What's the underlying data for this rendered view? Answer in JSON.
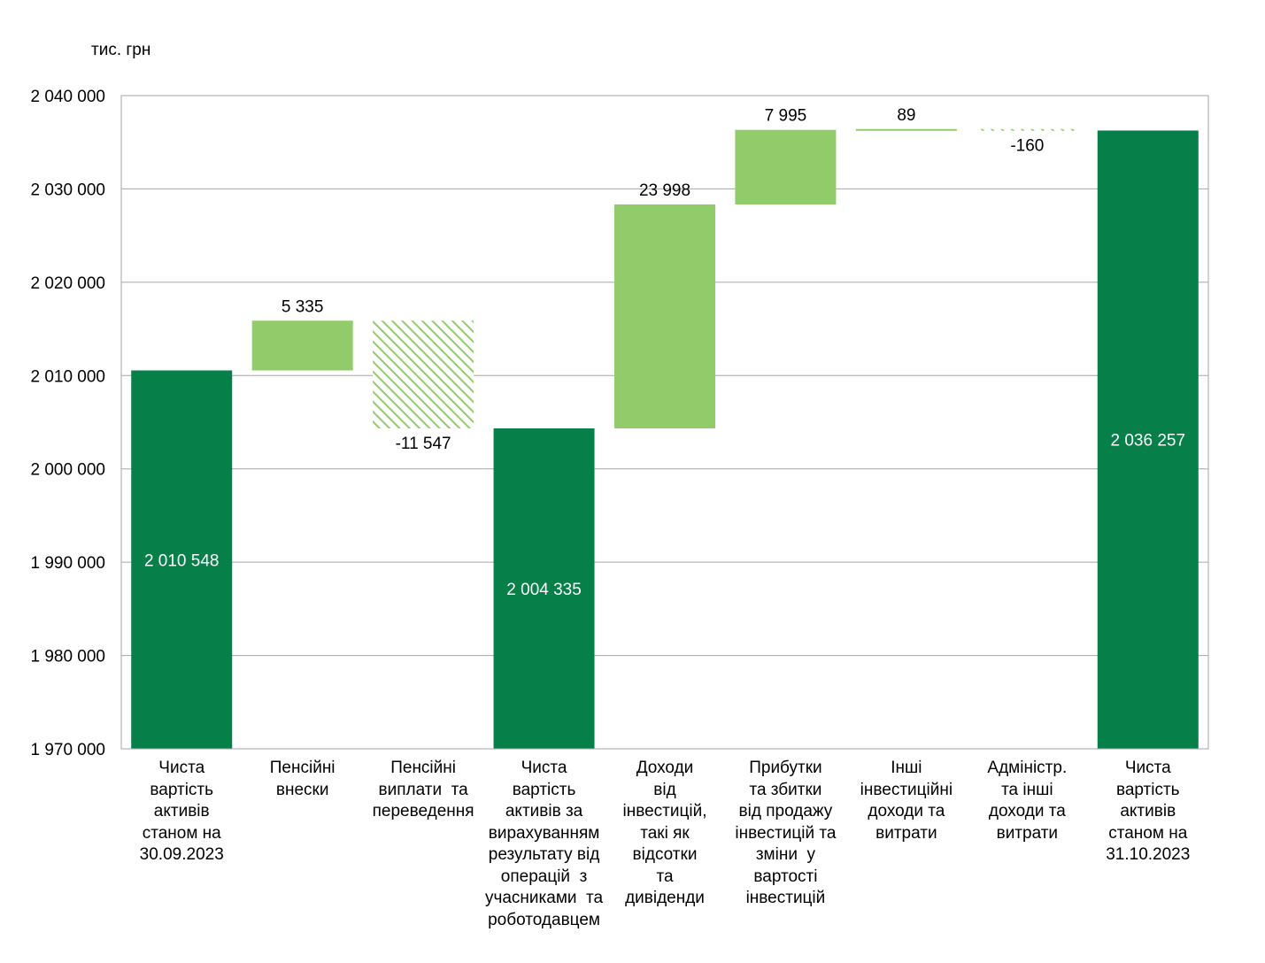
{
  "chart_data": {
    "type": "waterfall",
    "unit_label": "тис. грн",
    "ylim": [
      1970000,
      2040000
    ],
    "yticks": [
      1970000,
      1980000,
      1990000,
      2000000,
      2010000,
      2020000,
      2030000,
      2040000
    ],
    "ytick_labels": [
      "1 970 000",
      "1 980 000",
      "1 990 000",
      "2 000 000",
      "2 010 000",
      "2 020 000",
      "2 030 000",
      "2 040 000"
    ],
    "grid": true,
    "legend": "none",
    "colors": {
      "total": "#077f49",
      "increase": "#92cc6a",
      "decrease_hatch": "#92cc6a",
      "grid": "#a6a6a6"
    },
    "bars": [
      {
        "category": "Чиста вартість активів станом на 30.09.2023",
        "kind": "total",
        "value": 2010548,
        "label": "2 010 548"
      },
      {
        "category": "Пенсійні внески",
        "kind": "increase",
        "value": 5335,
        "label": "5 335"
      },
      {
        "category": "Пенсійні виплати та переведення",
        "kind": "decrease",
        "value": -11547,
        "label": "-11 547"
      },
      {
        "category": "Чиста вартість активів за вирахуванням результату від операцій з учасниками та роботодавцем",
        "kind": "total",
        "value": 2004335,
        "label": "2 004 335"
      },
      {
        "category": "Доходи від інвестицій, такі як відсотки та дивіденди",
        "kind": "increase",
        "value": 23998,
        "label": "23 998"
      },
      {
        "category": "Прибутки та збитки від продажу інвестицій та зміни у вартості інвестицій",
        "kind": "increase",
        "value": 7995,
        "label": "7 995"
      },
      {
        "category": "Інші інвестиційні доходи та витрати",
        "kind": "increase",
        "value": 89,
        "label": "89"
      },
      {
        "category": "Адміністр. та інші доходи та витрати",
        "kind": "decrease",
        "value": -160,
        "label": "-160"
      },
      {
        "category": "Чиста вартість активів станом на 31.10.2023",
        "kind": "total",
        "value": 2036257,
        "label": "2 036 257"
      }
    ],
    "category_lines": [
      [
        "Чиста",
        "вартість",
        "активів",
        "станом на",
        "30.09.2023"
      ],
      [
        "Пенсійні",
        "внески"
      ],
      [
        "Пенсійні",
        "виплати  та",
        "переведення"
      ],
      [
        "Чиста",
        "вартість",
        "активів за",
        "вирахуванням",
        "результату від",
        "операцій  з",
        "учасниками  та",
        "роботодавцем"
      ],
      [
        "Доходи",
        "від",
        "інвестицій,",
        "такі як",
        "відсотки",
        "та",
        "дивіденди"
      ],
      [
        "Прибутки",
        "та збитки",
        "від продажу",
        "інвестицій та",
        "зміни  у",
        "вартості",
        "інвестицій"
      ],
      [
        "Інші",
        "інвестиційні",
        "доходи та",
        "витрати"
      ],
      [
        "Адміністр.",
        "та інші",
        "доходи та",
        "витрати"
      ],
      [
        "Чиста",
        "вартість",
        "активів",
        "станом на",
        "31.10.2023"
      ]
    ]
  }
}
